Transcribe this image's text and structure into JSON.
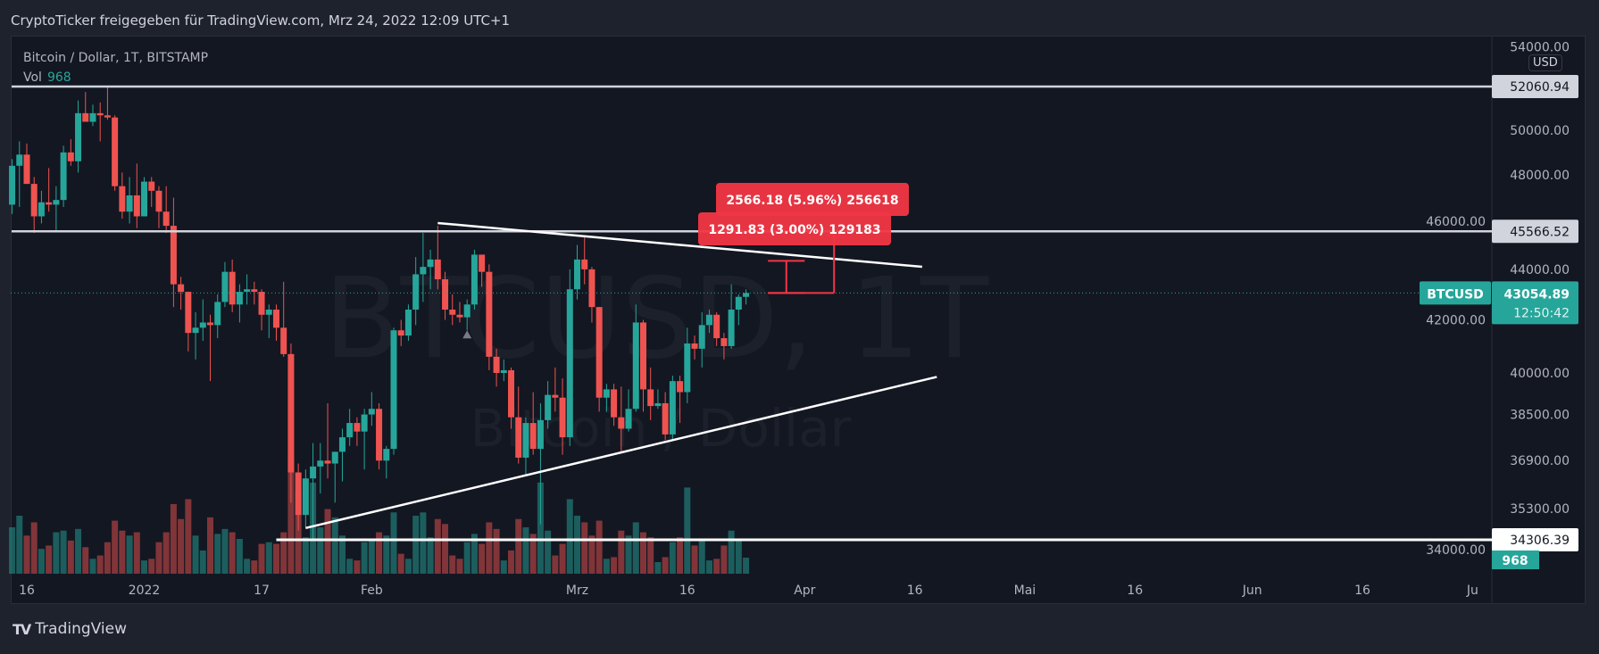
{
  "header": {
    "title": "CryptoTicker freigegeben für TradingView.com, Mrz 24, 2022 12:09 UTC+1"
  },
  "legend": {
    "symbol": "Bitcoin / Dollar, 1T, BITSTAMP",
    "vol_label": "Vol",
    "vol_value": "968"
  },
  "watermark": {
    "main": "BTCUSD, 1T",
    "sub": "Bitcoin / Dollar"
  },
  "currency_button": "USD",
  "footer": {
    "logo_text": "TradingView"
  },
  "colors": {
    "up": "#26a69a",
    "down": "#ef5350",
    "background": "#131722",
    "measure": "#f23645"
  },
  "chart_data": {
    "type": "candlestick",
    "scale": "log",
    "symbol": "BTCUSD",
    "last_price_label": "43054.89",
    "countdown": "12:50:42",
    "last_volume_label": "968",
    "y_ticks": [
      "54000.00",
      "50000.00",
      "48000.00",
      "46000.00",
      "44000.00",
      "42000.00",
      "40000.00",
      "38500.00",
      "36900.00",
      "35300.00",
      "34000.00"
    ],
    "x_ticks": [
      {
        "date": "2021-12-16",
        "label": "16"
      },
      {
        "date": "2022-01-01",
        "label": "2022"
      },
      {
        "date": "2022-01-17",
        "label": "17"
      },
      {
        "date": "2022-02-01",
        "label": "Feb"
      },
      {
        "date": "2022-03-01",
        "label": "Mrz"
      },
      {
        "date": "2022-03-16",
        "label": "16"
      },
      {
        "date": "2022-04-01",
        "label": "Apr"
      },
      {
        "date": "2022-04-16",
        "label": "16"
      },
      {
        "date": "2022-05-01",
        "label": "Mai"
      },
      {
        "date": "2022-05-16",
        "label": "16"
      },
      {
        "date": "2022-06-01",
        "label": "Jun"
      },
      {
        "date": "2022-06-16",
        "label": "16"
      },
      {
        "date": "2022-07-01",
        "label": "Ju"
      }
    ],
    "horizontal_lines": [
      {
        "price": 52060.94,
        "label": "52060.94",
        "start": "2021-12-12"
      },
      {
        "price": 45566.52,
        "label": "45566.52",
        "start": "2021-12-12"
      },
      {
        "price": 34306.39,
        "label": "34306.39",
        "start": "2022-01-19"
      }
    ],
    "trend_lines": [
      {
        "from": [
          "2022-02-10",
          45917
        ],
        "to": [
          "2022-04-17",
          44104
        ]
      },
      {
        "from": [
          "2022-01-23",
          34680
        ],
        "to": [
          "2022-04-19",
          39855
        ]
      }
    ],
    "price_ranges": [
      {
        "start": "2022-03-27",
        "end": "2022-04-01",
        "from": 43054.89,
        "to": 44346.7,
        "label": "1291.83 (3.00%) 129183"
      },
      {
        "start": "2022-03-27",
        "end": "2022-04-05",
        "from": 43054.89,
        "to": 45621.1,
        "label": "2566.18 (5.96%) 256618"
      }
    ],
    "candles": [
      [
        "2021-12-14",
        46700,
        48700,
        46300,
        48400,
        2800
      ],
      [
        "2021-12-15",
        48400,
        49500,
        46600,
        48900,
        3500
      ],
      [
        "2021-12-16",
        48900,
        49400,
        47600,
        47600,
        2300
      ],
      [
        "2021-12-17",
        47600,
        47900,
        45500,
        46200,
        3100
      ],
      [
        "2021-12-18",
        46200,
        47300,
        45900,
        46800,
        1500
      ],
      [
        "2021-12-19",
        46800,
        48300,
        46400,
        46700,
        1700
      ],
      [
        "2021-12-20",
        46700,
        47500,
        45600,
        46900,
        2500
      ],
      [
        "2021-12-21",
        46900,
        49300,
        46600,
        49000,
        2600
      ],
      [
        "2021-12-22",
        49000,
        49600,
        48400,
        48600,
        2000
      ],
      [
        "2021-12-23",
        48600,
        51400,
        48100,
        50800,
        2700
      ],
      [
        "2021-12-24",
        50800,
        51800,
        50400,
        50400,
        1600
      ],
      [
        "2021-12-25",
        50400,
        51200,
        50200,
        50800,
        900
      ],
      [
        "2021-12-26",
        50800,
        51300,
        49500,
        50700,
        1100
      ],
      [
        "2021-12-27",
        50700,
        52060,
        50500,
        50600,
        1900
      ],
      [
        "2021-12-28",
        50600,
        50700,
        47300,
        47500,
        3200
      ],
      [
        "2021-12-29",
        47500,
        48100,
        46100,
        46400,
        2600
      ],
      [
        "2021-12-30",
        46400,
        47900,
        45900,
        47100,
        2300
      ],
      [
        "2021-12-31",
        47100,
        48500,
        45700,
        46200,
        2500
      ],
      [
        "2022-01-01",
        46200,
        47900,
        46200,
        47700,
        800
      ],
      [
        "2022-01-02",
        47700,
        47900,
        46600,
        47300,
        900
      ],
      [
        "2022-01-03",
        47300,
        47500,
        45700,
        46400,
        1900
      ],
      [
        "2022-01-04",
        46400,
        47500,
        45500,
        45800,
        2500
      ],
      [
        "2022-01-05",
        45800,
        47000,
        42500,
        43400,
        4200
      ],
      [
        "2022-01-06",
        43400,
        43700,
        42400,
        43100,
        3300
      ],
      [
        "2022-01-07",
        43100,
        43100,
        40800,
        41500,
        4500
      ],
      [
        "2022-01-08",
        41500,
        42300,
        40500,
        41700,
        2300
      ],
      [
        "2022-01-09",
        41700,
        42800,
        41200,
        41900,
        1400
      ],
      [
        "2022-01-10",
        41900,
        42200,
        39700,
        41800,
        3400
      ],
      [
        "2022-01-11",
        41800,
        43000,
        41300,
        42700,
        2400
      ],
      [
        "2022-01-12",
        42700,
        44300,
        42500,
        43900,
        2700
      ],
      [
        "2022-01-13",
        43900,
        44400,
        42300,
        42600,
        2500
      ],
      [
        "2022-01-14",
        42600,
        43400,
        41900,
        43100,
        2100
      ],
      [
        "2022-01-15",
        43100,
        43800,
        42600,
        43200,
        900
      ],
      [
        "2022-01-16",
        43200,
        43500,
        42600,
        43100,
        800
      ],
      [
        "2022-01-17",
        43100,
        43200,
        41600,
        42200,
        1800
      ],
      [
        "2022-01-18",
        42200,
        42600,
        41300,
        42400,
        1900
      ],
      [
        "2022-01-19",
        42400,
        42600,
        41200,
        41700,
        1800
      ],
      [
        "2022-01-20",
        41700,
        43500,
        40600,
        40700,
        2500
      ],
      [
        "2022-01-21",
        40700,
        41100,
        35500,
        36500,
        7000
      ],
      [
        "2022-01-22",
        36500,
        36800,
        34600,
        35100,
        5000
      ],
      [
        "2022-01-23",
        35100,
        36600,
        34700,
        36300,
        2200
      ],
      [
        "2022-01-24",
        36300,
        37500,
        34300,
        36700,
        5500
      ],
      [
        "2022-01-25",
        36700,
        37500,
        35800,
        36900,
        2800
      ],
      [
        "2022-01-26",
        36900,
        38900,
        36300,
        36800,
        3900
      ],
      [
        "2022-01-27",
        36800,
        37200,
        35500,
        37200,
        3400
      ],
      [
        "2022-01-28",
        37200,
        38000,
        36200,
        37700,
        2300
      ],
      [
        "2022-01-29",
        37700,
        38700,
        37400,
        38200,
        900
      ],
      [
        "2022-01-30",
        38200,
        38400,
        37400,
        37900,
        800
      ],
      [
        "2022-01-31",
        37900,
        38700,
        36600,
        38500,
        1900
      ],
      [
        "2022-02-01",
        38500,
        39300,
        38100,
        38700,
        2000
      ],
      [
        "2022-02-02",
        38700,
        38900,
        36600,
        36900,
        2500
      ],
      [
        "2022-02-03",
        36900,
        37400,
        36300,
        37300,
        2300
      ],
      [
        "2022-02-04",
        37300,
        41700,
        37100,
        41600,
        3700
      ],
      [
        "2022-02-05",
        41600,
        42000,
        41000,
        41400,
        1200
      ],
      [
        "2022-02-06",
        41400,
        42600,
        41200,
        42400,
        900
      ],
      [
        "2022-02-07",
        42400,
        44500,
        41800,
        43800,
        3500
      ],
      [
        "2022-02-08",
        43800,
        45500,
        42700,
        44100,
        3700
      ],
      [
        "2022-02-09",
        44100,
        44800,
        43200,
        44400,
        2200
      ],
      [
        "2022-02-10",
        44400,
        45800,
        43200,
        43600,
        3300
      ],
      [
        "2022-02-11",
        43600,
        43900,
        42000,
        42400,
        3000
      ],
      [
        "2022-02-12",
        42400,
        43000,
        41800,
        42200,
        1100
      ],
      [
        "2022-02-13",
        42200,
        42700,
        41900,
        42100,
        900
      ],
      [
        "2022-02-14",
        42100,
        42800,
        41600,
        42600,
        1900
      ],
      [
        "2022-02-15",
        42600,
        44800,
        42400,
        44600,
        2400
      ],
      [
        "2022-02-16",
        44600,
        44600,
        43300,
        43900,
        1800
      ],
      [
        "2022-02-17",
        43900,
        44200,
        40100,
        40600,
        3100
      ],
      [
        "2022-02-18",
        40600,
        40900,
        39500,
        40000,
        2700
      ],
      [
        "2022-02-19",
        40000,
        40500,
        39700,
        40100,
        800
      ],
      [
        "2022-02-20",
        40100,
        40200,
        38000,
        38400,
        1400
      ],
      [
        "2022-02-21",
        38400,
        39500,
        36800,
        37000,
        3300
      ],
      [
        "2022-02-22",
        37000,
        38400,
        36400,
        38200,
        2800
      ],
      [
        "2022-02-23",
        38200,
        39300,
        37100,
        37300,
        2400
      ],
      [
        "2022-02-24",
        37300,
        38900,
        34800,
        38300,
        5500
      ],
      [
        "2022-02-25",
        38300,
        39700,
        38000,
        39200,
        2600
      ],
      [
        "2022-02-26",
        39200,
        40200,
        38600,
        39100,
        1100
      ],
      [
        "2022-02-27",
        39100,
        39800,
        37100,
        37700,
        1800
      ],
      [
        "2022-02-28",
        37700,
        44000,
        37400,
        43200,
        4500
      ],
      [
        "2022-03-01",
        43200,
        45000,
        42800,
        44400,
        3500
      ],
      [
        "2022-03-02",
        44400,
        45400,
        43400,
        44000,
        3100
      ],
      [
        "2022-03-03",
        44000,
        44100,
        41900,
        42500,
        2300
      ],
      [
        "2022-03-04",
        42500,
        42500,
        38600,
        39100,
        3200
      ],
      [
        "2022-03-05",
        39100,
        39600,
        38600,
        39400,
        900
      ],
      [
        "2022-03-06",
        39400,
        39600,
        38100,
        38400,
        1000
      ],
      [
        "2022-03-07",
        38400,
        39500,
        37200,
        38000,
        2600
      ],
      [
        "2022-03-08",
        38000,
        39400,
        37900,
        38700,
        2300
      ],
      [
        "2022-03-09",
        38700,
        42600,
        38600,
        41900,
        3100
      ],
      [
        "2022-03-10",
        41900,
        42000,
        38600,
        39400,
        2500
      ],
      [
        "2022-03-11",
        39400,
        40200,
        38300,
        38800,
        2200
      ],
      [
        "2022-03-12",
        38800,
        39400,
        38700,
        38900,
        700
      ],
      [
        "2022-03-13",
        38900,
        39300,
        37600,
        37800,
        1000
      ],
      [
        "2022-03-14",
        37800,
        39900,
        37600,
        39700,
        1900
      ],
      [
        "2022-03-15",
        39700,
        39900,
        38200,
        39300,
        2200
      ],
      [
        "2022-03-16",
        39300,
        41700,
        38900,
        41100,
        5200
      ],
      [
        "2022-03-17",
        41100,
        41400,
        40500,
        40900,
        1700
      ],
      [
        "2022-03-18",
        40900,
        42300,
        40200,
        41800,
        2100
      ],
      [
        "2022-03-19",
        41800,
        42400,
        41500,
        42200,
        800
      ],
      [
        "2022-03-20",
        42200,
        42300,
        41000,
        41300,
        900
      ],
      [
        "2022-03-21",
        41300,
        41500,
        40500,
        41000,
        1700
      ],
      [
        "2022-03-22",
        41000,
        43400,
        40900,
        42400,
        2600
      ],
      [
        "2022-03-23",
        42400,
        43000,
        41800,
        42900,
        2000
      ],
      [
        "2022-03-24",
        42900,
        43200,
        42600,
        43054.89,
        968
      ]
    ]
  }
}
